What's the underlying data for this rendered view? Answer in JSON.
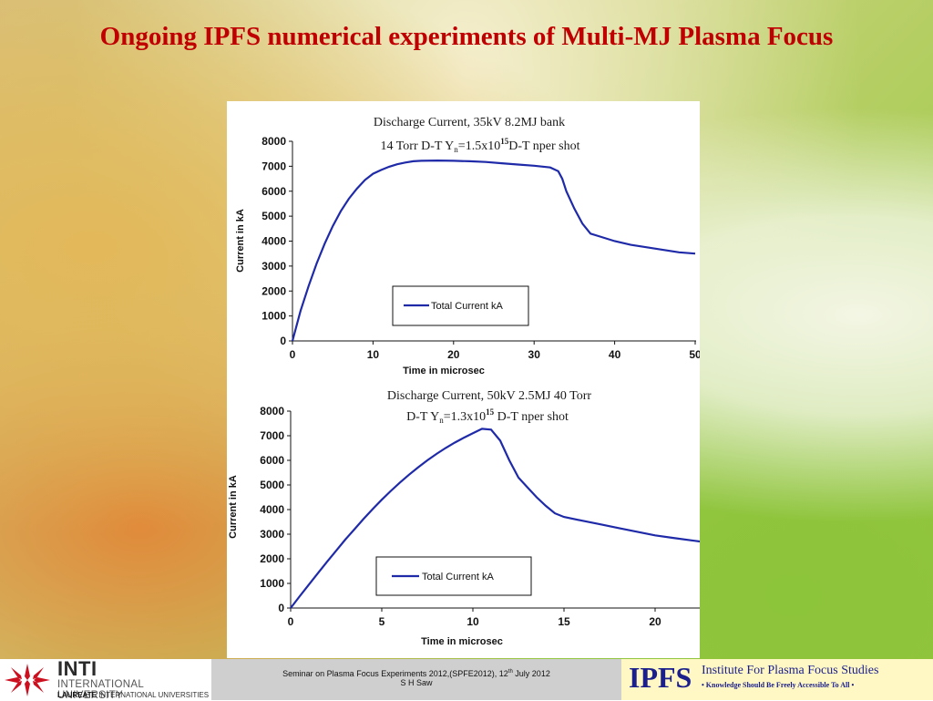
{
  "slide": {
    "title": "Ongoing IPFS numerical experiments of Multi-MJ Plasma Focus"
  },
  "chart_data": [
    {
      "type": "line",
      "title_line1": "Discharge Current, 35kV 8.2MJ  bank",
      "title_line2_prefix": "14 Torr D-T    Y",
      "title_line2_sub": "n",
      "title_line2_mid": "=1.5x10",
      "title_line2_sup": "15",
      "title_line2_suffix": "D-T nper shot",
      "xlabel": "Time in microsec",
      "ylabel": "Current in kA",
      "xlim": [
        0,
        50
      ],
      "ylim": [
        0,
        8000
      ],
      "x_ticks": [
        "0",
        "10",
        "20",
        "30",
        "40",
        "50"
      ],
      "y_ticks": [
        "0",
        "1000",
        "2000",
        "3000",
        "4000",
        "5000",
        "6000",
        "7000",
        "8000"
      ],
      "legend": "Total Current kA",
      "series": [
        {
          "name": "Total Current kA",
          "x": [
            0,
            1,
            2,
            3,
            4,
            5,
            6,
            7,
            8,
            9,
            10,
            11,
            12,
            13,
            14,
            15,
            16,
            18,
            20,
            22,
            24,
            26,
            28,
            30,
            32,
            33,
            33.5,
            34,
            35,
            36,
            37,
            38,
            40,
            42,
            44,
            46,
            48,
            50
          ],
          "y": [
            0,
            1200,
            2200,
            3100,
            3900,
            4600,
            5200,
            5700,
            6100,
            6450,
            6700,
            6850,
            6980,
            7080,
            7150,
            7200,
            7220,
            7230,
            7220,
            7200,
            7170,
            7120,
            7070,
            7020,
            6950,
            6800,
            6500,
            6000,
            5300,
            4700,
            4300,
            4200,
            4000,
            3850,
            3750,
            3650,
            3550,
            3500
          ]
        }
      ]
    },
    {
      "type": "line",
      "title_line1": "Discharge Current, 50kV 2.5MJ 40 Torr",
      "title_line2_prefix": "D-T    Y",
      "title_line2_sub": "n",
      "title_line2_mid": "=1.3x10",
      "title_line2_sup": "15",
      "title_line2_suffix": " D-T nper shot",
      "xlabel": "Time in microsec",
      "ylabel": "Current in kA",
      "xlim": [
        0,
        22.5
      ],
      "ylim": [
        0,
        8000
      ],
      "x_ticks": [
        "0",
        "5",
        "10",
        "15",
        "20"
      ],
      "y_ticks": [
        "0",
        "1000",
        "2000",
        "3000",
        "4000",
        "5000",
        "6000",
        "7000",
        "8000"
      ],
      "legend": "Total Current kA",
      "series": [
        {
          "name": "Total Current kA",
          "x": [
            0,
            0.5,
            1,
            1.5,
            2,
            2.5,
            3,
            3.5,
            4,
            4.5,
            5,
            5.5,
            6,
            6.5,
            7,
            7.5,
            8,
            8.5,
            9,
            9.5,
            10,
            10.5,
            11,
            11.5,
            12,
            12.5,
            13,
            13.5,
            14,
            14.5,
            15,
            16,
            17,
            18,
            19,
            20,
            21,
            22,
            22.5
          ],
          "y": [
            0,
            480,
            950,
            1420,
            1880,
            2330,
            2780,
            3200,
            3620,
            4020,
            4400,
            4760,
            5100,
            5420,
            5720,
            6000,
            6260,
            6500,
            6720,
            6920,
            7100,
            7280,
            7250,
            6800,
            6000,
            5300,
            4900,
            4500,
            4150,
            3850,
            3700,
            3550,
            3400,
            3250,
            3100,
            2950,
            2850,
            2750,
            2700
          ]
        }
      ]
    }
  ],
  "footer": {
    "inti_name": "INTI",
    "inti_university": "INTERNATIONAL UNIVERSITY",
    "inti_laureate_bold": "LAUREATE",
    "inti_laureate_rest": " INTERNATIONAL UNIVERSITIES",
    "seminar_prefix": "Seminar on Plasma Focus Experiments 2012,(SPFE2012), 12",
    "seminar_sup": "th",
    "seminar_suffix": " July 2012",
    "author": "S H Saw",
    "ipfs_abbr": "IPFS",
    "ipfs_full": "Institute For Plasma Focus Studies",
    "ipfs_tagline": "• Knowledge Should Be Freely Accessible To All •"
  },
  "colors": {
    "title": "#c00000",
    "series_line": "#1f2aa8",
    "ipfs_blue": "#1a1f8c",
    "inti_red": "#cc1020"
  },
  "icons": {
    "inti_logo": "inti-star-logo-icon"
  }
}
